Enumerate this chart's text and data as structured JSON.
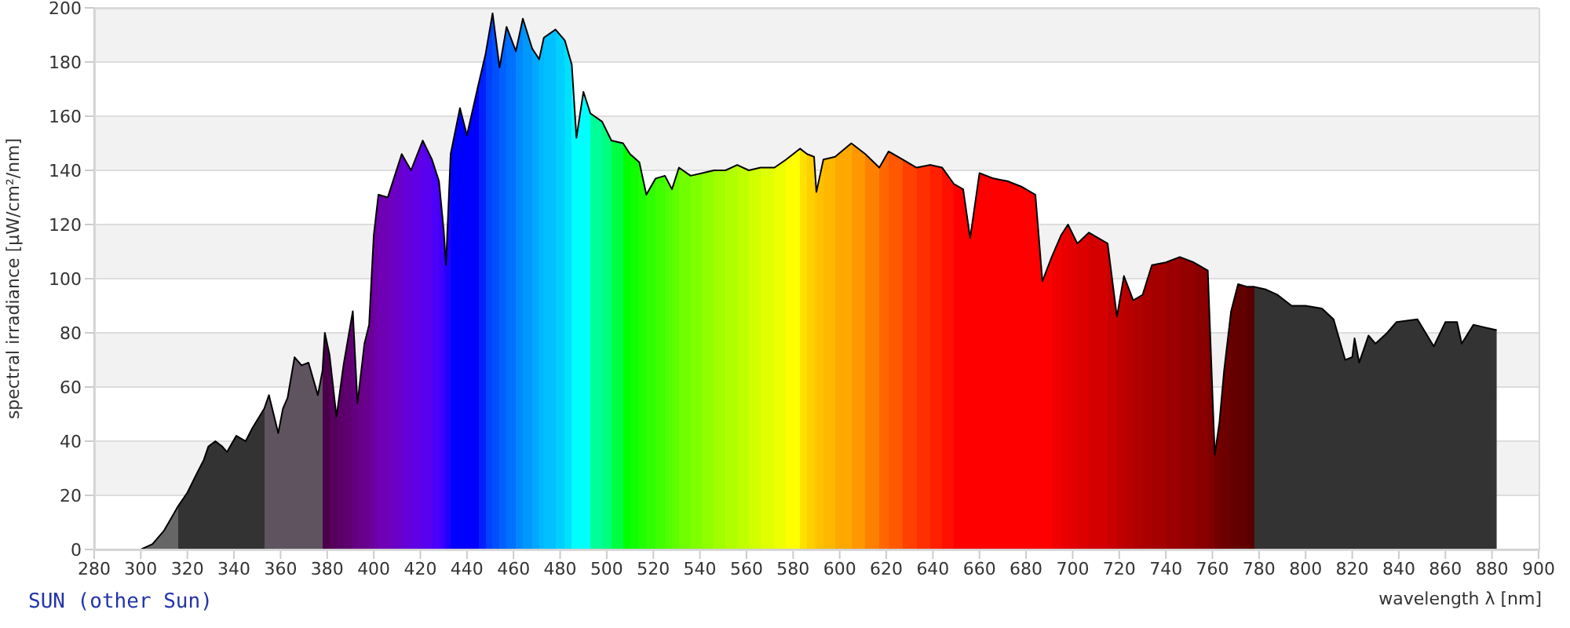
{
  "chart_data": {
    "type": "area",
    "xlabel": "wavelength λ [nm]",
    "ylabel": "spectral irradiance [µW/cm²/nm]",
    "annotations": [
      "SUN (other Sun)"
    ],
    "xlim": [
      280,
      900
    ],
    "xticks": [
      280,
      300,
      320,
      340,
      360,
      380,
      400,
      420,
      440,
      460,
      480,
      500,
      520,
      540,
      560,
      580,
      600,
      620,
      640,
      660,
      680,
      700,
      720,
      740,
      760,
      780,
      800,
      820,
      840,
      860,
      880,
      900
    ],
    "ylim": [
      0,
      200
    ],
    "yticks": [
      0,
      20,
      40,
      60,
      80,
      100,
      120,
      140,
      160,
      180,
      200
    ],
    "grid": "y",
    "legend": false,
    "color": "#000000",
    "x": [
      300,
      305,
      310,
      314,
      316,
      320,
      324,
      327,
      329,
      332,
      335,
      337,
      341,
      345,
      348,
      353,
      355,
      359,
      361,
      363,
      366,
      369,
      372,
      376,
      378,
      379,
      381,
      384,
      387,
      391,
      393,
      396,
      398,
      400,
      402,
      406,
      409,
      412,
      416,
      421,
      425,
      428,
      430,
      431,
      433,
      437,
      440,
      445,
      448,
      451,
      454,
      457,
      461,
      464,
      468,
      471,
      473,
      478,
      482,
      485,
      487,
      490,
      493,
      498,
      502,
      507,
      510,
      514,
      517,
      521,
      525,
      528,
      531,
      536,
      541,
      546,
      551,
      556,
      561,
      566,
      572,
      577,
      583,
      586,
      589,
      590,
      593,
      598,
      605,
      611,
      617,
      621,
      627,
      633,
      639,
      644,
      649,
      653,
      656,
      660,
      666,
      672,
      678,
      684,
      687,
      691,
      695,
      698,
      702,
      707,
      715,
      719,
      722,
      726,
      730,
      734,
      740,
      746,
      752,
      758,
      761,
      763,
      765,
      768,
      771,
      775,
      778,
      783,
      788,
      794,
      800,
      807,
      812,
      817,
      820,
      821,
      823,
      827,
      830,
      835,
      839,
      848,
      855,
      860,
      865,
      867,
      872,
      877,
      882
    ],
    "values": [
      0,
      2,
      7,
      13,
      16,
      21,
      28,
      33,
      38,
      40,
      38,
      36,
      42,
      40,
      45,
      52,
      57,
      43,
      52,
      56,
      71,
      68,
      69,
      57,
      66,
      80,
      72,
      49,
      68,
      88,
      54,
      76,
      83,
      116,
      131,
      130,
      138,
      146,
      140,
      151,
      144,
      136,
      118,
      105,
      146,
      163,
      153,
      172,
      183,
      198,
      178,
      193,
      184,
      196,
      185,
      181,
      189,
      192,
      188,
      179,
      152,
      169,
      161,
      158,
      151,
      150,
      146,
      143,
      131,
      137,
      138,
      133,
      141,
      138,
      139,
      140,
      140,
      142,
      140,
      141,
      141,
      144,
      148,
      146,
      145,
      132,
      144,
      145,
      150,
      146,
      141,
      147,
      144,
      141,
      142,
      141,
      135,
      133,
      115,
      139,
      137,
      136,
      134,
      131,
      99,
      108,
      116,
      120,
      113,
      117,
      113,
      86,
      101,
      92,
      94,
      105,
      106,
      108,
      106,
      103,
      35,
      47,
      66,
      88,
      98,
      97,
      97,
      96,
      94,
      90,
      90,
      89,
      85,
      70,
      71,
      78,
      69,
      79,
      76,
      80,
      84,
      85,
      75,
      84,
      84,
      76,
      83,
      82,
      81
    ],
    "colors": [
      "#666666",
      "#666666",
      "#666666",
      "#666666",
      "#333333",
      "#333333",
      "#333333",
      "#333333",
      "#333333",
      "#333333",
      "#333333",
      "#333333",
      "#333333",
      "#333333",
      "#333333",
      "#5e535e",
      "#5e535e",
      "#5e535e",
      "#5e535e",
      "#5e535e",
      "#5e535e",
      "#5e535e",
      "#5e535e",
      "#5e535e",
      "#4b004b",
      "#4b004b",
      "#55005a",
      "#5a0066",
      "#600070",
      "#640080",
      "#680088",
      "#6a0090",
      "#6c0098",
      "#6e00a8",
      "#7000b4",
      "#6e00c0",
      "#6a00c8",
      "#6600d8",
      "#6000e4",
      "#5800f0",
      "#4c00f8",
      "#4000ff",
      "#3000ff",
      "#2000ff",
      "#0000ff",
      "#0000ff",
      "#0000ff",
      "#0020ff",
      "#0040ff",
      "#0050ff",
      "#0060ff",
      "#0070ff",
      "#0088ff",
      "#0098ff",
      "#00a8ff",
      "#00b8ff",
      "#00c0ff",
      "#00d0ff",
      "#00e0ff",
      "#00ffff",
      "#00ffff",
      "#00ffff",
      "#00ff99",
      "#00ff80",
      "#00ff40",
      "#00ff00",
      "#10ff00",
      "#20ff00",
      "#30ff00",
      "#40ff00",
      "#50ff00",
      "#60ff00",
      "#70ff00",
      "#80ff00",
      "#90ff00",
      "#a0ff00",
      "#b0ff00",
      "#c0ff00",
      "#d0ff00",
      "#e0ff00",
      "#f0ff00",
      "#ffff00",
      "#ffe000",
      "#ffd000",
      "#ffc800",
      "#ffc000",
      "#ffb800",
      "#ffa800",
      "#ff9800",
      "#ff8000",
      "#ff6800",
      "#ff5800",
      "#ff4000",
      "#ff3000",
      "#ff2000",
      "#ff1000",
      "#ff0000",
      "#ff0000",
      "#ff0000",
      "#ff0000",
      "#ff0000",
      "#ff0000",
      "#ff0000",
      "#ff0000",
      "#ff0000",
      "#f00000",
      "#ea0000",
      "#e40000",
      "#dc0000",
      "#d40000",
      "#c80000",
      "#c00000",
      "#b80000",
      "#b00000",
      "#aa0000",
      "#a40000",
      "#9c0000",
      "#940000",
      "#8a0000",
      "#800000",
      "#740000",
      "#700000",
      "#6a0000",
      "#640000",
      "#600000",
      "#580000",
      "#333333",
      "#333333",
      "#333333",
      "#333333",
      "#333333",
      "#333333",
      "#333333",
      "#333333",
      "#333333",
      "#333333",
      "#333333",
      "#333333",
      "#333333",
      "#333333",
      "#333333",
      "#333333",
      "#333333",
      "#333333",
      "#333333",
      "#333333",
      "#333333",
      "#333333",
      "#333333"
    ]
  }
}
